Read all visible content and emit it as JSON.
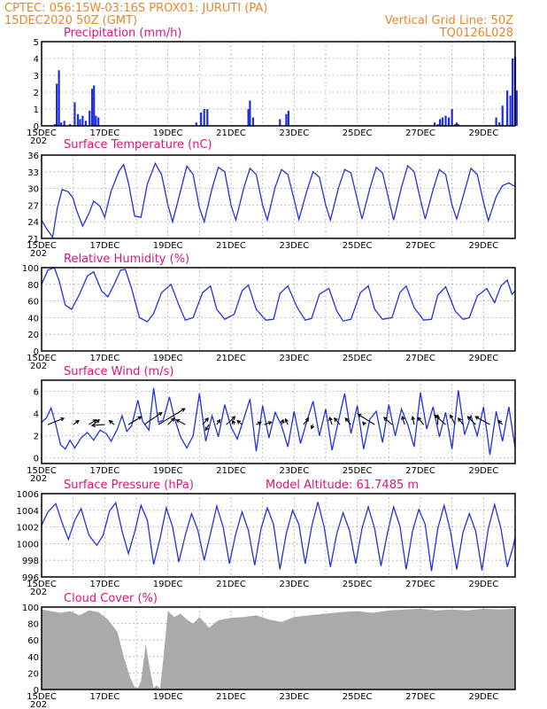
{
  "header": {
    "line1_left": "CPTEC:  056:15W-03:16S  PROX01: JURUTI (PA)",
    "line2_left": "15DEC2020 50Z (GMT)",
    "line2_right": "Vertical Grid Line: 50Z",
    "line3_right": "TQ0126L028"
  },
  "x_axis": {
    "tick_labels": [
      "15DEC",
      "17DEC",
      "19DEC",
      "21DEC",
      "23DEC",
      "25DEC",
      "27DEC",
      "29DEC"
    ],
    "first_label_suffix": "202"
  },
  "colors": {
    "series": "#2233dd",
    "bars": "#1f2fe0",
    "cloud": "#aaaaaa",
    "title": "#e0117f",
    "header": "#e8862a"
  },
  "chart_data": [
    {
      "type": "bar",
      "title": "Precipitation (mm/h)",
      "ylim": [
        0,
        5
      ],
      "yticks": [
        0,
        1,
        2,
        3,
        4,
        5
      ],
      "x_unit": "day offset from 15DEC",
      "x": [
        0.42,
        0.48,
        0.55,
        0.62,
        0.72,
        0.9,
        1.05,
        1.15,
        1.22,
        1.3,
        1.4,
        1.52,
        1.6,
        1.66,
        1.72,
        1.8,
        4.9,
        5.05,
        5.15,
        5.25,
        6.55,
        6.6,
        6.7,
        7.55,
        7.75,
        7.82,
        12.45,
        12.55,
        12.62,
        12.7,
        12.8,
        12.9,
        13.0,
        13.1,
        13.15,
        13.2,
        14.4,
        14.5,
        14.6,
        14.75,
        14.85,
        14.92,
        15.0,
        15.05
      ],
      "values": [
        0.1,
        2.5,
        3.3,
        0.2,
        0.3,
        0.1,
        1.4,
        0.7,
        0.4,
        0.6,
        0.3,
        0.9,
        2.2,
        2.4,
        0.6,
        0.5,
        0.2,
        0.8,
        1.0,
        1.0,
        1.0,
        1.5,
        0.5,
        0.4,
        0.7,
        0.9,
        0.2,
        0.1,
        0.4,
        0.5,
        0.6,
        0.5,
        1.0,
        0.1,
        0.2,
        0.1,
        0.5,
        0.2,
        1.2,
        2.1,
        1.8,
        4.0,
        4.1,
        2.1
      ]
    },
    {
      "type": "line",
      "title": "Surface Temperature (nC)",
      "ylim": [
        21,
        36
      ],
      "yticks": [
        21,
        24,
        27,
        30,
        33,
        36
      ],
      "series": [
        {
          "x": [
            0,
            0.15,
            0.35,
            0.5,
            0.65,
            0.85,
            1.0,
            1.1,
            1.3,
            1.5,
            1.65,
            1.85,
            2.0,
            2.2,
            2.45,
            2.6,
            2.75,
            2.95,
            3.15,
            3.35,
            3.6,
            3.8,
            4.0,
            4.15,
            4.4,
            4.6,
            4.8,
            5.0,
            5.15,
            5.4,
            5.6,
            5.8,
            6.0,
            6.15,
            6.4,
            6.6,
            6.8,
            7.0,
            7.15,
            7.4,
            7.6,
            7.8,
            8.0,
            8.15,
            8.4,
            8.6,
            8.8,
            9.0,
            9.15,
            9.4,
            9.6,
            9.8,
            10.0,
            10.15,
            10.4,
            10.6,
            10.8,
            11.0,
            11.15,
            11.4,
            11.6,
            11.8,
            12.0,
            12.15,
            12.4,
            12.6,
            12.8,
            13.0,
            13.15,
            13.4,
            13.6,
            13.8,
            14.0,
            14.15,
            14.4,
            14.6,
            14.8,
            14.95,
            15.0
          ],
          "values": [
            24.3,
            22.8,
            21.2,
            26.5,
            29.8,
            29.4,
            28.2,
            26.2,
            23.2,
            25.5,
            27.7,
            26.8,
            24.8,
            29.5,
            33.1,
            34.3,
            31.0,
            25.0,
            24.8,
            30.8,
            34.5,
            32.5,
            27.0,
            24.0,
            29.5,
            34.0,
            32.5,
            26.5,
            24.0,
            30.0,
            33.8,
            33.0,
            27.0,
            24.3,
            30.0,
            33.6,
            32.5,
            27.0,
            24.3,
            30.2,
            33.4,
            32.5,
            28.0,
            24.4,
            29.5,
            33.0,
            32.0,
            27.0,
            24.3,
            30.0,
            33.4,
            32.8,
            28.0,
            24.5,
            30.0,
            33.8,
            32.8,
            28.0,
            24.3,
            30.2,
            34.1,
            33.0,
            28.0,
            24.5,
            29.8,
            33.4,
            32.5,
            27.0,
            24.5,
            29.5,
            33.6,
            32.5,
            27.5,
            24.2,
            28.5,
            30.5,
            31.0,
            30.5,
            30.5
          ]
        }
      ]
    },
    {
      "type": "line",
      "title": "Relative Humidity (%)",
      "ylim": [
        0,
        100
      ],
      "yticks": [
        0,
        20,
        40,
        60,
        80,
        100
      ],
      "series": [
        {
          "x": [
            0,
            0.2,
            0.4,
            0.55,
            0.75,
            0.95,
            1.2,
            1.45,
            1.65,
            1.9,
            2.1,
            2.3,
            2.5,
            2.65,
            2.85,
            3.1,
            3.35,
            3.55,
            3.8,
            4.1,
            4.35,
            4.55,
            4.8,
            5.1,
            5.35,
            5.55,
            5.8,
            6.1,
            6.35,
            6.55,
            6.8,
            7.1,
            7.35,
            7.55,
            7.8,
            8.1,
            8.35,
            8.55,
            8.8,
            9.1,
            9.35,
            9.55,
            9.8,
            10.1,
            10.35,
            10.55,
            10.8,
            11.1,
            11.35,
            11.55,
            11.8,
            12.1,
            12.35,
            12.55,
            12.8,
            13.1,
            13.35,
            13.55,
            13.8,
            14.1,
            14.35,
            14.55,
            14.75,
            14.9,
            15.0
          ],
          "values": [
            80,
            97,
            100,
            85,
            55,
            50,
            68,
            90,
            95,
            72,
            65,
            80,
            97,
            98,
            75,
            40,
            35,
            45,
            70,
            80,
            55,
            37,
            40,
            70,
            78,
            50,
            38,
            44,
            72,
            79,
            50,
            37,
            38,
            69,
            78,
            52,
            37,
            39,
            68,
            75,
            48,
            36,
            38,
            70,
            78,
            50,
            38,
            40,
            70,
            78,
            52,
            37,
            38,
            67,
            77,
            48,
            38,
            40,
            66,
            75,
            58,
            78,
            85,
            68,
            72
          ]
        }
      ]
    },
    {
      "type": "line",
      "title": "Surface Wind (m/s)",
      "ylim": [
        -0.5,
        7
      ],
      "yticks": [
        0,
        2,
        4,
        6
      ],
      "series": [
        {
          "x": [
            0,
            0.15,
            0.3,
            0.45,
            0.6,
            0.75,
            0.9,
            1.05,
            1.25,
            1.45,
            1.65,
            1.85,
            2.05,
            2.2,
            2.4,
            2.55,
            2.7,
            2.85,
            3.05,
            3.2,
            3.4,
            3.55,
            3.7,
            3.85,
            4.05,
            4.2,
            4.4,
            4.6,
            4.8,
            5.0,
            5.2,
            5.4,
            5.6,
            5.8,
            6.0,
            6.2,
            6.4,
            6.6,
            6.8,
            7.0,
            7.2,
            7.4,
            7.6,
            7.8,
            8.0,
            8.2,
            8.4,
            8.6,
            8.8,
            9.0,
            9.2,
            9.4,
            9.6,
            9.8,
            10.0,
            10.2,
            10.4,
            10.6,
            10.8,
            11.0,
            11.2,
            11.4,
            11.6,
            11.8,
            12.0,
            12.2,
            12.4,
            12.6,
            12.8,
            13.0,
            13.2,
            13.4,
            13.6,
            13.8,
            14.0,
            14.2,
            14.4,
            14.6,
            14.8,
            15.0
          ],
          "values": [
            3.2,
            3.6,
            4.5,
            3.0,
            1.2,
            0.8,
            1.6,
            0.9,
            1.8,
            2.3,
            1.6,
            2.5,
            2.2,
            1.5,
            2.6,
            3.8,
            2.4,
            2.9,
            5.2,
            3.3,
            2.5,
            6.3,
            3.2,
            3.4,
            5.5,
            3.7,
            1.9,
            0.9,
            2.0,
            5.8,
            1.5,
            3.8,
            1.9,
            4.8,
            2.8,
            1.7,
            3.5,
            5.3,
            0.6,
            4.7,
            1.8,
            4.1,
            2.9,
            1.0,
            4.2,
            1.3,
            3.3,
            5.1,
            2.0,
            4.4,
            0.7,
            3.3,
            5.8,
            2.2,
            4.7,
            0.8,
            3.5,
            4.2,
            1.4,
            4.8,
            2.0,
            4.4,
            3.0,
            1.0,
            5.9,
            2.6,
            4.6,
            1.9,
            4.1,
            0.8,
            6.1,
            2.1,
            3.8,
            2.0,
            4.6,
            0.3,
            4.2,
            1.5,
            4.6,
            0.9
          ]
        }
      ]
    },
    {
      "type": "line",
      "title": "Surface Pressure (hPa)",
      "annotation": "Model Altitude: 61.7485 m",
      "ylim": [
        996,
        1006
      ],
      "yticks": [
        996,
        998,
        1000,
        1002,
        1004,
        1006
      ],
      "series": [
        {
          "x": [
            0,
            0.2,
            0.45,
            0.65,
            0.85,
            1.05,
            1.25,
            1.5,
            1.75,
            1.95,
            2.15,
            2.35,
            2.55,
            2.75,
            2.95,
            3.15,
            3.35,
            3.55,
            3.75,
            3.95,
            4.15,
            4.35,
            4.55,
            4.75,
            4.95,
            5.15,
            5.35,
            5.55,
            5.75,
            5.95,
            6.15,
            6.35,
            6.55,
            6.75,
            6.95,
            7.15,
            7.35,
            7.55,
            7.75,
            7.95,
            8.15,
            8.35,
            8.55,
            8.75,
            8.95,
            9.15,
            9.35,
            9.55,
            9.75,
            9.95,
            10.15,
            10.35,
            10.55,
            10.75,
            10.95,
            11.15,
            11.35,
            11.55,
            11.75,
            11.95,
            12.15,
            12.35,
            12.55,
            12.75,
            12.95,
            13.15,
            13.35,
            13.55,
            13.75,
            13.95,
            14.15,
            14.35,
            14.55,
            14.75,
            14.95,
            15.0
          ],
          "values": [
            1002.2,
            1003.8,
            1004.8,
            1002.5,
            1000.5,
            1002.8,
            1004.2,
            1001.0,
            999.8,
            1001.0,
            1003.9,
            1004.9,
            1001.5,
            998.8,
            1001.4,
            1004.6,
            1002.8,
            997.5,
            1000.6,
            1004.3,
            1002.0,
            997.8,
            1001.0,
            1003.6,
            1001.6,
            998.0,
            1001.2,
            1004.5,
            1002.0,
            997.6,
            1001.2,
            1003.8,
            1001.6,
            997.4,
            1001.8,
            1004.3,
            1002.3,
            996.9,
            1001.2,
            1004.0,
            1002.3,
            997.6,
            1002.0,
            1005.0,
            1002.0,
            997.2,
            1001.2,
            1003.7,
            1001.6,
            997.6,
            1001.8,
            1004.4,
            1001.8,
            997.3,
            1001.2,
            1004.4,
            1002.1,
            996.9,
            1001.5,
            1004.1,
            1002.3,
            996.7,
            1001.8,
            1004.6,
            1001.5,
            996.9,
            1001.4,
            1003.6,
            1001.5,
            996.8,
            1001.8,
            1004.7,
            1001.8,
            997.2,
            999.8,
            1000.8
          ]
        }
      ]
    },
    {
      "type": "area",
      "title": "Cloud Cover (%)",
      "ylim": [
        0,
        100
      ],
      "yticks": [
        0,
        20,
        40,
        60,
        80,
        100
      ],
      "series": [
        {
          "x": [
            0,
            0.3,
            0.6,
            0.9,
            1.2,
            1.5,
            1.8,
            2.1,
            2.4,
            2.6,
            2.8,
            2.95,
            3.05,
            3.15,
            3.3,
            3.45,
            3.55,
            3.65,
            3.75,
            3.85,
            4.0,
            4.2,
            4.4,
            4.6,
            4.8,
            5.0,
            5.3,
            5.6,
            6.0,
            6.4,
            6.8,
            7.2,
            7.6,
            8.0,
            8.5,
            9.0,
            9.5,
            10.0,
            10.5,
            11.0,
            11.5,
            12.0,
            12.5,
            13.0,
            13.5,
            14.0,
            14.5,
            15.0
          ],
          "values": [
            97,
            95,
            93,
            95,
            90,
            96,
            94,
            85,
            70,
            40,
            15,
            3,
            2,
            10,
            55,
            20,
            2,
            5,
            1,
            35,
            95,
            88,
            92,
            85,
            80,
            88,
            75,
            84,
            87,
            88,
            90,
            85,
            82,
            88,
            90,
            92,
            94,
            95,
            93,
            96,
            97,
            98,
            96,
            97,
            96,
            98,
            97,
            98
          ]
        }
      ]
    }
  ],
  "wind_vectors": {
    "x": [
      0.2,
      1.0,
      1.5,
      1.65,
      2.0,
      2.3,
      2.75,
      3.25,
      3.7,
      4.0,
      4.55,
      5.1,
      5.3,
      5.55,
      5.85,
      6.1,
      6.35,
      6.8,
      7.05,
      7.6,
      7.8,
      8.3,
      8.6,
      9.2,
      9.45,
      9.8,
      10.25,
      10.55,
      11.1,
      11.5,
      11.8,
      12.1,
      12.55,
      12.8,
      13.1,
      13.35,
      13.75,
      14.2,
      14.6
    ],
    "u": [
      2.0,
      0.7,
      0.9,
      0.7,
      -1.6,
      -0.6,
      1.6,
      2.2,
      3.3,
      0.8,
      -1.1,
      0.7,
      -0.4,
      0.4,
      1.1,
      -0.2,
      -0.6,
      0.6,
      0.9,
      0.2,
      -0.3,
      0.6,
      -0.2,
      -0.3,
      -0.7,
      -0.7,
      -0.3,
      -2.1,
      -1.0,
      -0.3,
      -0.2,
      -0.7,
      0.0,
      -1.4,
      -0.6,
      -0.6,
      -1.0,
      -1.8,
      -0.5
    ],
    "v": [
      0.8,
      0.5,
      0.6,
      0.6,
      -0.1,
      0.5,
      1.0,
      1.5,
      2.0,
      0.8,
      0.6,
      0.8,
      -0.7,
      0.6,
      1.0,
      0.5,
      0.5,
      0.3,
      0.3,
      0.6,
      0.7,
      0.8,
      -0.5,
      0.9,
      0.8,
      0.8,
      0.3,
      1.3,
      0.9,
      1.0,
      1.0,
      0.9,
      1.2,
      1.2,
      1.2,
      0.8,
      1.0,
      1.0,
      0.5
    ]
  }
}
